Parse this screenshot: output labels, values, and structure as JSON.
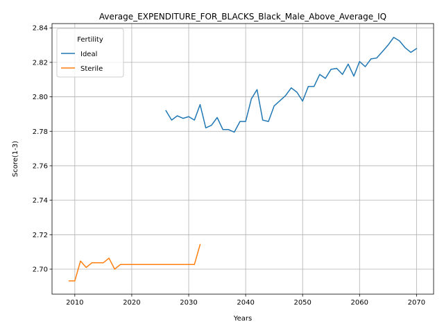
{
  "chart_data": {
    "type": "line",
    "title": "Average_EXPENDITURE_FOR_BLACKS_Black_Male_Above_Average_IQ",
    "xlabel": "Years",
    "ylabel": "Score(1-3)",
    "xlim": [
      2006,
      2073
    ],
    "ylim": [
      2.6855,
      2.8425
    ],
    "xticks": [
      2010,
      2020,
      2030,
      2040,
      2050,
      2060,
      2070
    ],
    "yticks": [
      2.7,
      2.72,
      2.74,
      2.76,
      2.78,
      2.8,
      2.82,
      2.84
    ],
    "ytick_labels": [
      "2.70",
      "2.72",
      "2.74",
      "2.76",
      "2.78",
      "2.80",
      "2.82",
      "2.84"
    ],
    "grid": true,
    "legend": {
      "title": "Fertility",
      "placement": "top-left"
    },
    "series": [
      {
        "name": "Ideal",
        "color": "#1f77b4",
        "x": [
          2026,
          2027,
          2028,
          2029,
          2030,
          2031,
          2032,
          2033,
          2034,
          2035,
          2036,
          2037,
          2038,
          2039,
          2040,
          2041,
          2042,
          2043,
          2044,
          2045,
          2046,
          2047,
          2048,
          2049,
          2050,
          2051,
          2052,
          2053,
          2054,
          2055,
          2056,
          2057,
          2058,
          2059,
          2060,
          2061,
          2062,
          2063,
          2064,
          2065,
          2066,
          2067,
          2068,
          2069,
          2070
        ],
        "values": [
          2.792,
          2.7865,
          2.789,
          2.7875,
          2.7885,
          2.7865,
          2.7955,
          2.782,
          2.7835,
          2.788,
          2.781,
          2.781,
          2.7795,
          2.7857,
          2.7857,
          2.7988,
          2.8042,
          2.7865,
          2.7857,
          2.7947,
          2.7977,
          2.8007,
          2.8052,
          2.8027,
          2.7975,
          2.806,
          2.806,
          2.813,
          2.8107,
          2.816,
          2.8165,
          2.813,
          2.819,
          2.812,
          2.8205,
          2.8175,
          2.822,
          2.8225,
          2.8262,
          2.83,
          2.8345,
          2.8325,
          2.8285,
          2.8258,
          2.828
        ]
      },
      {
        "name": "Sterile",
        "color": "#ff7f0e",
        "x": [
          2009,
          2010,
          2011,
          2012,
          2013,
          2014,
          2015,
          2016,
          2017,
          2018,
          2019,
          2020,
          2021,
          2022,
          2023,
          2024,
          2025,
          2026,
          2027,
          2028,
          2029,
          2030,
          2031,
          2032
        ],
        "values": [
          2.6932,
          2.6932,
          2.7047,
          2.701,
          2.7037,
          2.7037,
          2.7037,
          2.7064,
          2.7,
          2.7027,
          2.7027,
          2.7027,
          2.7027,
          2.7027,
          2.7027,
          2.7027,
          2.7027,
          2.7027,
          2.7027,
          2.7027,
          2.7027,
          2.7027,
          2.7027,
          2.7143
        ]
      }
    ]
  }
}
